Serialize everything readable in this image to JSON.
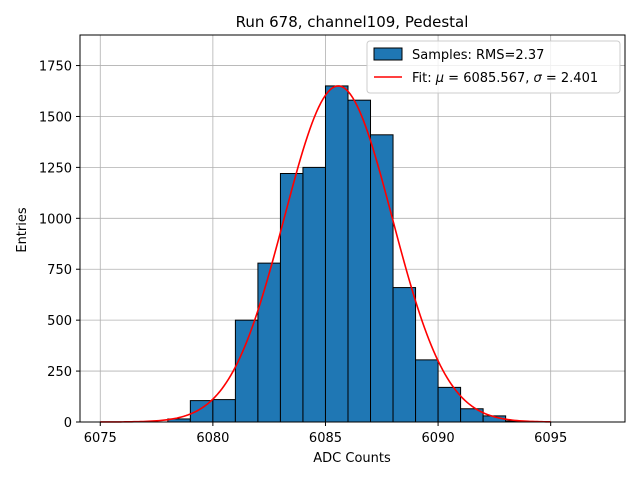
{
  "chart_data": {
    "type": "bar",
    "title": "Run 678, channel109, Pedestal",
    "xlabel": "ADC Counts",
    "ylabel": "Entries",
    "xlim": [
      6074.1,
      6098.3
    ],
    "ylim": [
      0,
      1900
    ],
    "xticks": [
      "6075",
      "6080",
      "6085",
      "6090",
      "6095"
    ],
    "xtick_values": [
      6075,
      6080,
      6085,
      6090,
      6095
    ],
    "yticks": [
      "0",
      "250",
      "500",
      "750",
      "1000",
      "1250",
      "1500",
      "1750"
    ],
    "ytick_values": [
      0,
      250,
      500,
      750,
      1000,
      1250,
      1500,
      1750
    ],
    "grid": true,
    "legend_location": "top-right",
    "bar_color": "#1f77b4",
    "bar_edge_color": "#000000",
    "fit_color": "#ff0000",
    "histogram": {
      "name": "Samples: RMS=2.37",
      "bin_edges": [
        6075,
        6076,
        6077,
        6078,
        6079,
        6080,
        6081,
        6082,
        6083,
        6084,
        6085,
        6086,
        6087,
        6088,
        6089,
        6090,
        6091,
        6092,
        6093,
        6094,
        6095,
        6096,
        6097
      ],
      "counts": [
        0,
        0,
        0,
        15,
        105,
        110,
        500,
        780,
        1220,
        1250,
        1650,
        1580,
        1410,
        660,
        305,
        170,
        65,
        30,
        5,
        0,
        0,
        0
      ]
    },
    "fit": {
      "name": "Fit: μ = 6085.567, σ = 2.401",
      "label_prefix": "Fit: ",
      "mu_symbol": "μ",
      "mu_text": " = 6085.567, ",
      "sigma_symbol": "σ",
      "sigma_text": " = 2.401",
      "mu": 6085.567,
      "sigma": 2.401,
      "amplitude": 1650,
      "x_range": [
        6075,
        6095
      ]
    }
  }
}
